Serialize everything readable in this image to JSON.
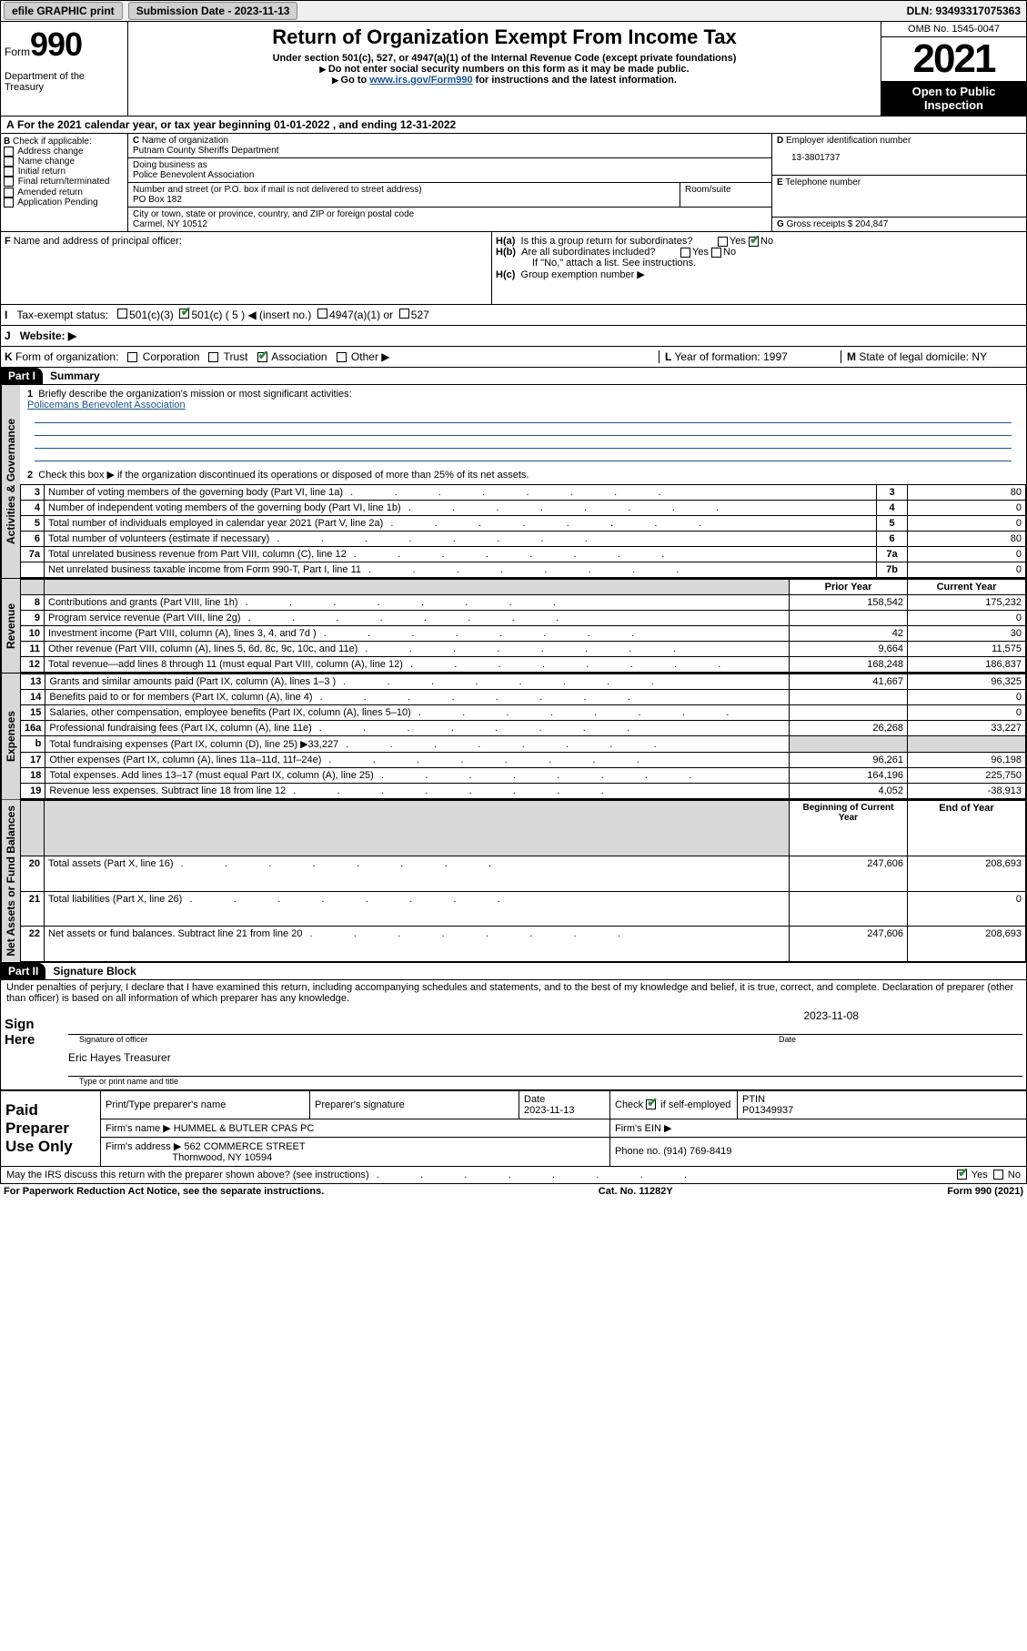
{
  "topbar": {
    "efile": "efile GRAPHIC print",
    "submission_label": "Submission Date - 2023-11-13",
    "dln": "DLN: 93493317075363"
  },
  "header": {
    "form_label": "Form",
    "form_num": "990",
    "dept": "Department of the Treasury\n",
    "title": "Return of Organization Exempt From Income Tax",
    "subtitle": "Under section 501(c), 527, or 4947(a)(1) of the Internal Revenue Code (except private foundations)",
    "instr1": "Do not enter social security numbers on this form as it may be made public.",
    "instr2_pre": "Go to ",
    "instr2_link": "www.irs.gov/Form990",
    "instr2_post": " for instructions and the latest information.",
    "omb": "OMB No. 1545-0047",
    "year": "2021",
    "open_pub": "Open to Public Inspection"
  },
  "A": {
    "taxyear": "For the 2021 calendar year, or tax year beginning 01-01-2022   , and ending 12-31-2022"
  },
  "B": {
    "label": "Check if applicable:",
    "items": [
      "Address change",
      "Name change",
      "Initial return",
      "Final return/terminated",
      "Amended return",
      "Application Pending"
    ]
  },
  "C": {
    "name_label": "Name of organization",
    "name": "Putnam County Sheriffs Department",
    "dba_label": "Doing business as",
    "dba": "Police Benevolent Association",
    "street_label": "Number and street (or P.O. box if mail is not delivered to street address)",
    "room_label": "Room/suite",
    "street": "PO Box 182",
    "city_label": "City or town, state or province, country, and ZIP or foreign postal code",
    "city": "Carmel, NY   10512"
  },
  "D": {
    "label": "Employer identification number",
    "ein": "13-3801737"
  },
  "E": {
    "label": "Telephone number",
    "phone": ""
  },
  "G": {
    "label": "Gross receipts $",
    "amount": "204,847"
  },
  "F": {
    "label": "Name and address of principal officer:"
  },
  "H": {
    "a": "Is this a group return for subordinates?",
    "b": "Are all subordinates included?",
    "b_note": "If \"No,\" attach a list. See instructions.",
    "c": "Group exemption number ▶"
  },
  "I": {
    "label": "Tax-exempt status:"
  },
  "J": {
    "label": "Website: ▶"
  },
  "K": {
    "label": "Form of organization:",
    "opts": [
      "Corporation",
      "Trust",
      "Association",
      "Other ▶"
    ]
  },
  "L": {
    "label": "Year of formation:",
    "val": "1997"
  },
  "M": {
    "label": "State of legal domicile:",
    "val": "NY"
  },
  "part1": {
    "header": "Part I",
    "title": "Summary",
    "q1": "Briefly describe the organization's mission or most significant activities:",
    "mission": "Policemans Benevolent Association",
    "q2": "Check this box ▶       if the organization discontinued its operations or disposed of more than 25% of its net assets.",
    "lines_gov": [
      {
        "n": "3",
        "t": "Number of voting members of the governing body (Part VI, line 1a)",
        "box": "3",
        "v": "80"
      },
      {
        "n": "4",
        "t": "Number of independent voting members of the governing body (Part VI, line 1b)",
        "box": "4",
        "v": "0"
      },
      {
        "n": "5",
        "t": "Total number of individuals employed in calendar year 2021 (Part V, line 2a)",
        "box": "5",
        "v": "0"
      },
      {
        "n": "6",
        "t": "Total number of volunteers (estimate if necessary)",
        "box": "6",
        "v": "80"
      },
      {
        "n": "7a",
        "t": "Total unrelated business revenue from Part VIII, column (C), line 12",
        "box": "7a",
        "v": "0"
      },
      {
        "n": "",
        "t": "Net unrelated business taxable income from Form 990-T, Part I, line 11",
        "box": "7b",
        "v": "0"
      }
    ],
    "col_prior": "Prior Year",
    "col_current": "Current Year",
    "revenue": [
      {
        "n": "8",
        "t": "Contributions and grants (Part VIII, line 1h)",
        "p": "158,542",
        "c": "175,232"
      },
      {
        "n": "9",
        "t": "Program service revenue (Part VIII, line 2g)",
        "p": "",
        "c": "0"
      },
      {
        "n": "10",
        "t": "Investment income (Part VIII, column (A), lines 3, 4, and 7d )",
        "p": "42",
        "c": "30"
      },
      {
        "n": "11",
        "t": "Other revenue (Part VIII, column (A), lines 5, 6d, 8c, 9c, 10c, and 11e)",
        "p": "9,664",
        "c": "11,575"
      },
      {
        "n": "12",
        "t": "Total revenue—add lines 8 through 11 (must equal Part VIII, column (A), line 12)",
        "p": "168,248",
        "c": "186,837"
      }
    ],
    "expenses": [
      {
        "n": "13",
        "t": "Grants and similar amounts paid (Part IX, column (A), lines 1–3 )",
        "p": "41,667",
        "c": "96,325"
      },
      {
        "n": "14",
        "t": "Benefits paid to or for members (Part IX, column (A), line 4)",
        "p": "",
        "c": "0"
      },
      {
        "n": "15",
        "t": "Salaries, other compensation, employee benefits (Part IX, column (A), lines 5–10)",
        "p": "",
        "c": "0"
      },
      {
        "n": "16a",
        "t": "Professional fundraising fees (Part IX, column (A), line 11e)",
        "p": "26,268",
        "c": "33,227"
      },
      {
        "n": "b",
        "t": "Total fundraising expenses (Part IX, column (D), line 25) ▶33,227",
        "p": "GRAY",
        "c": "GRAY"
      },
      {
        "n": "17",
        "t": "Other expenses (Part IX, column (A), lines 11a–11d, 11f–24e)",
        "p": "96,261",
        "c": "96,198"
      },
      {
        "n": "18",
        "t": "Total expenses. Add lines 13–17 (must equal Part IX, column (A), line 25)",
        "p": "164,196",
        "c": "225,750"
      },
      {
        "n": "19",
        "t": "Revenue less expenses. Subtract line 18 from line 12",
        "p": "4,052",
        "c": "-38,913"
      }
    ],
    "col_begin": "Beginning of Current Year",
    "col_end": "End of Year",
    "netassets": [
      {
        "n": "20",
        "t": "Total assets (Part X, line 16)",
        "p": "247,606",
        "c": "208,693"
      },
      {
        "n": "21",
        "t": "Total liabilities (Part X, line 26)",
        "p": "",
        "c": "0"
      },
      {
        "n": "22",
        "t": "Net assets or fund balances. Subtract line 21 from line 20",
        "p": "247,606",
        "c": "208,693"
      }
    ]
  },
  "part2": {
    "header": "Part II",
    "title": "Signature Block",
    "decl": "Under penalties of perjury, I declare that I have examined this return, including accompanying schedules and statements, and to the best of my knowledge and belief, it is true, correct, and complete. Declaration of preparer (other than officer) is based on all information of which preparer has any knowledge."
  },
  "sign": {
    "here": "Sign Here",
    "sig_label": "Signature of officer",
    "date": "2023-11-08",
    "date_label": "Date",
    "name": "Eric Hayes Treasurer",
    "name_label": "Type or print name and title"
  },
  "paid": {
    "label": "Paid Preparer Use Only",
    "cols": [
      "Print/Type preparer's name",
      "Preparer's signature",
      "Date",
      "",
      "PTIN"
    ],
    "date": "2023-11-13",
    "check_label": "Check          if self-employed",
    "ptin": "P01349937",
    "firm_label": "Firm's name    ▶",
    "firm": "HUMMEL & BUTLER CPAS PC",
    "ein_label": "Firm's EIN ▶",
    "addr_label": "Firm's address ▶",
    "addr1": "562 COMMERCE STREET",
    "addr2": "Thornwood, NY  10594",
    "phone_label": "Phone no.",
    "phone": "(914) 769-8419"
  },
  "irs_discuss": "May the IRS discuss this return with the preparer shown above? (see instructions)",
  "footer": {
    "left": "For Paperwork Reduction Act Notice, see the separate instructions.",
    "mid": "Cat. No. 11282Y",
    "right": "Form 990 (2021)"
  },
  "vtabs": {
    "gov": "Activities & Governance",
    "rev": "Revenue",
    "exp": "Expenses",
    "net": "Net Assets or Fund Balances"
  }
}
